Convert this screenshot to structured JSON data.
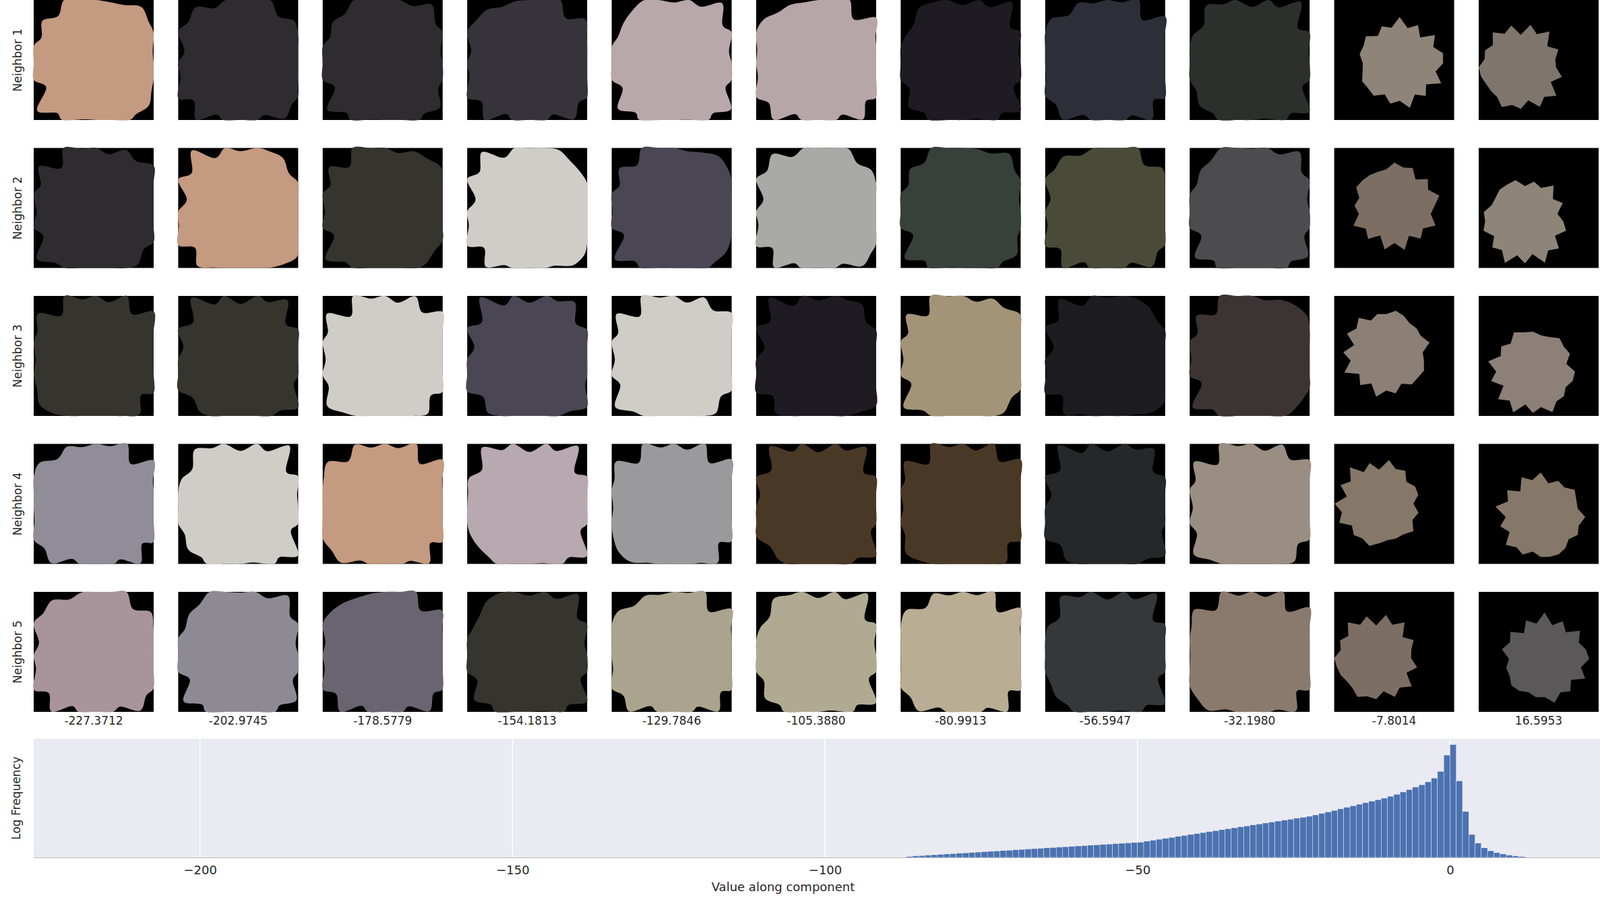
{
  "neighbor_grid": {
    "row_labels": [
      "Neighbor 1",
      "Neighbor 2",
      "Neighbor 3",
      "Neighbor 4",
      "Neighbor 5"
    ],
    "columns": [
      -227.3712,
      -202.9745,
      -178.5779,
      -154.1813,
      -129.7846,
      {
        "value": -105.388,
        "label": "-105.3880"
      },
      -80.9913,
      -56.5947,
      {
        "value": -32.198,
        "label": "-32.1980"
      },
      -7.8014,
      16.5953
    ]
  },
  "chart_data": {
    "type": "histogram",
    "x_label": "Value along component",
    "y_label": "Log Frequency",
    "xlim": [
      -226.6,
      24.0
    ],
    "xticks": [
      {
        "value": -200,
        "label": "−200"
      },
      {
        "value": -150,
        "label": "−150"
      },
      {
        "value": -100,
        "label": "−100"
      },
      {
        "value": -50,
        "label": "−50"
      },
      0
    ],
    "ylim": [
      0,
      6.2
    ],
    "grid": true,
    "tick_labels": "x",
    "color": "#4c72b0",
    "bins": [
      -87,
      -86,
      -85,
      -84,
      -83,
      -82,
      -81,
      -80,
      -79,
      -78,
      -77,
      -76,
      -75,
      -74,
      -73,
      -72,
      -71,
      -70,
      -69,
      -68,
      -67,
      -66,
      -65,
      -64,
      -63,
      -62,
      -61,
      -60,
      -59,
      -58,
      -57,
      -56,
      -55,
      -54,
      -53,
      -52,
      -51,
      -50,
      -49,
      -48,
      -47,
      -46,
      -45,
      -44,
      -43,
      -42,
      -41,
      -40,
      -39,
      -38,
      -37,
      -36,
      -35,
      -34,
      -33,
      -32,
      -31,
      -30,
      -29,
      -28,
      -27,
      -26,
      -25,
      -24,
      -23,
      -22,
      -21,
      -20,
      -19,
      -18,
      -17,
      -16,
      -15,
      -14,
      -13,
      -12,
      -11,
      -10,
      -9,
      -8,
      -7,
      -6,
      -5,
      -4,
      -3,
      -2,
      -1,
      0,
      1,
      2,
      3,
      4,
      5,
      6,
      7,
      8,
      9,
      10,
      11,
      12
    ],
    "values": [
      0.05,
      0.08,
      0.1,
      0.12,
      0.14,
      0.16,
      0.18,
      0.2,
      0.22,
      0.24,
      0.26,
      0.28,
      0.3,
      0.32,
      0.34,
      0.36,
      0.38,
      0.4,
      0.42,
      0.44,
      0.46,
      0.48,
      0.5,
      0.52,
      0.54,
      0.56,
      0.58,
      0.6,
      0.62,
      0.64,
      0.66,
      0.68,
      0.7,
      0.72,
      0.74,
      0.76,
      0.78,
      0.8,
      0.85,
      0.9,
      0.95,
      1.0,
      1.05,
      1.1,
      1.15,
      1.2,
      1.25,
      1.3,
      1.35,
      1.4,
      1.45,
      1.5,
      1.55,
      1.6,
      1.65,
      1.7,
      1.75,
      1.8,
      1.85,
      1.9,
      1.95,
      2.0,
      2.05,
      2.1,
      2.15,
      2.22,
      2.3,
      2.38,
      2.46,
      2.54,
      2.62,
      2.7,
      2.78,
      2.86,
      2.94,
      3.02,
      3.1,
      3.2,
      3.3,
      3.42,
      3.55,
      3.68,
      3.8,
      3.95,
      4.15,
      4.5,
      5.35,
      5.9,
      4.0,
      2.4,
      1.2,
      0.75,
      0.5,
      0.35,
      0.25,
      0.18,
      0.12,
      0.08,
      0.05
    ]
  }
}
